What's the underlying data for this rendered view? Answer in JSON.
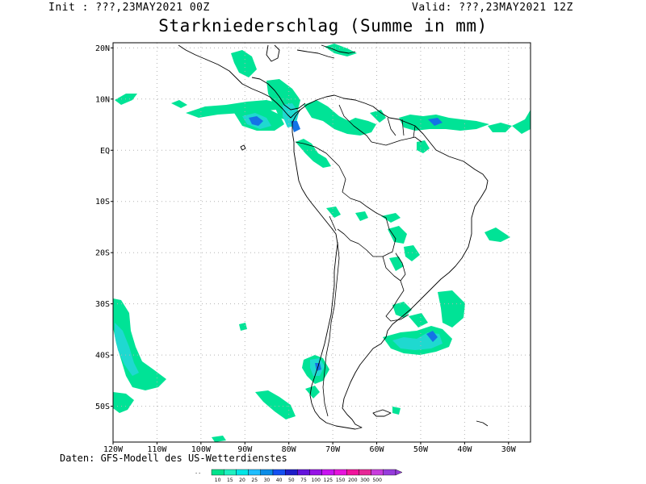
{
  "header": {
    "init": "Init : ???,23MAY2021 00Z",
    "valid": "Valid: ???,23MAY2021 12Z",
    "title": "Starkniederschlag (Summe in mm)"
  },
  "map": {
    "lon_range": [
      -120,
      -25
    ],
    "lat_range": [
      -57,
      21
    ],
    "lat_ticks": [
      {
        "lat": 20,
        "label": "20N"
      },
      {
        "lat": 10,
        "label": "10N"
      },
      {
        "lat": 0,
        "label": "EQ"
      },
      {
        "lat": -10,
        "label": "10S"
      },
      {
        "lat": -20,
        "label": "20S"
      },
      {
        "lat": -30,
        "label": "30S"
      },
      {
        "lat": -40,
        "label": "40S"
      },
      {
        "lat": -50,
        "label": "50S"
      }
    ],
    "lon_ticks": [
      {
        "lon": -120,
        "label": "120W"
      },
      {
        "lon": -110,
        "label": "110W"
      },
      {
        "lon": -100,
        "label": "100W"
      },
      {
        "lon": -90,
        "label": "90W"
      },
      {
        "lon": -80,
        "label": "80W"
      },
      {
        "lon": -70,
        "label": "70W"
      },
      {
        "lon": -60,
        "label": "60W"
      },
      {
        "lon": -50,
        "label": "50W"
      },
      {
        "lon": -40,
        "label": "40W"
      },
      {
        "lon": -30,
        "label": "30W"
      }
    ]
  },
  "legend": {
    "levels": [
      "10",
      "15",
      "20",
      "25",
      "30",
      "40",
      "50",
      "75",
      "100",
      "125",
      "150",
      "200",
      "300",
      "500"
    ],
    "colors": [
      "#00e38c",
      "#1ff0c0",
      "#00e6e6",
      "#1fbeff",
      "#0a8ce6",
      "#1450f0",
      "#1e1ec8",
      "#6414dc",
      "#9614e6",
      "#c814f0",
      "#e614dc",
      "#f0149c",
      "#e62896",
      "#c83cdc",
      "#963cdc"
    ]
  },
  "precip_colors": {
    "light": "#00e396",
    "medium": "#1fd9d0",
    "heavy": "#1473e6",
    "extreme": "#1a1ab4"
  },
  "footer": {
    "credit": "Daten: GFS-Modell des US-Wetterdienstes"
  }
}
